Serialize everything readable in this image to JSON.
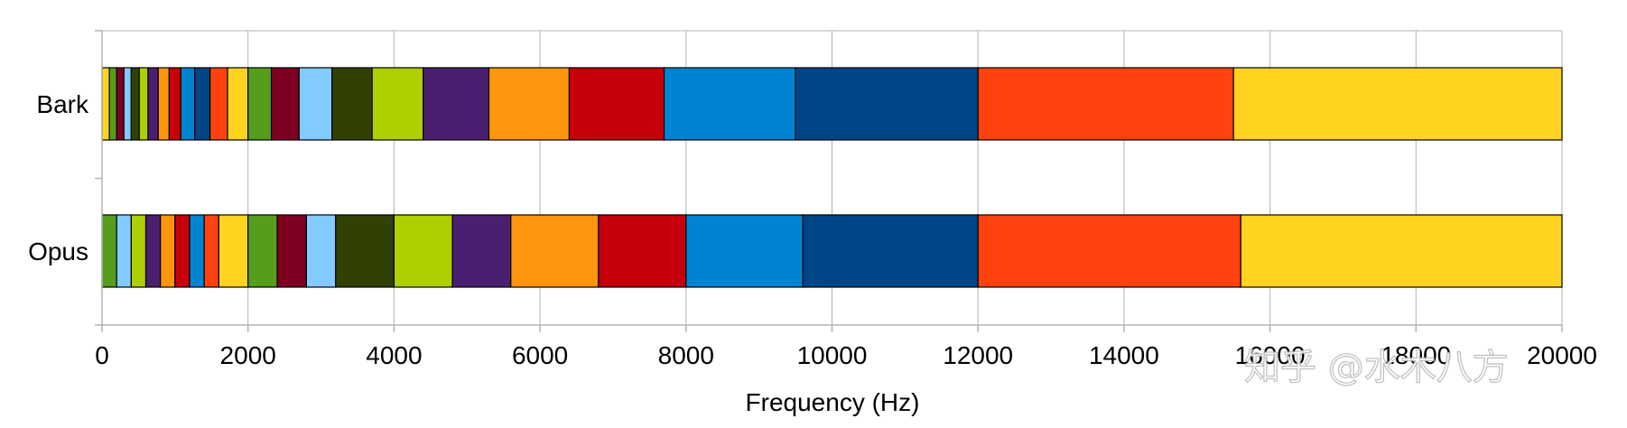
{
  "chart_data": {
    "type": "bar",
    "orientation": "horizontal-stacked-bands",
    "xlabel": "Frequency (Hz)",
    "xlim": [
      0,
      20000
    ],
    "xticks": [
      0,
      2000,
      4000,
      6000,
      8000,
      10000,
      12000,
      14000,
      16000,
      18000,
      20000
    ],
    "grid": true,
    "categories": [
      "Bark",
      "Opus"
    ],
    "palette": [
      "#ffd320",
      "#579d1c",
      "#7e0021",
      "#83caff",
      "#314004",
      "#aecf00",
      "#4b1f6f",
      "#ff950e",
      "#c5000b",
      "#0084d1",
      "#004586",
      "#ff420e"
    ],
    "series": [
      {
        "category": "Bark",
        "band_edges": [
          0,
          100,
          200,
          300,
          400,
          510,
          630,
          770,
          920,
          1080,
          1270,
          1480,
          1720,
          2000,
          2320,
          2700,
          3150,
          3700,
          4400,
          5300,
          6400,
          7700,
          9500,
          12000,
          15500,
          20000
        ],
        "colors": [
          "#ffd320",
          "#579d1c",
          "#7e0021",
          "#83caff",
          "#314004",
          "#aecf00",
          "#4b1f6f",
          "#ff950e",
          "#c5000b",
          "#0084d1",
          "#004586",
          "#ff420e",
          "#ffd320",
          "#579d1c",
          "#7e0021",
          "#83caff",
          "#314004",
          "#aecf00",
          "#4b1f6f",
          "#ff950e",
          "#c5000b",
          "#0084d1",
          "#004586",
          "#ff420e",
          "#ffd320"
        ]
      },
      {
        "category": "Opus",
        "band_edges": [
          0,
          200,
          400,
          600,
          800,
          1000,
          1200,
          1400,
          1600,
          2000,
          2400,
          2800,
          3200,
          4000,
          4800,
          5600,
          6800,
          8000,
          9600,
          12000,
          15600,
          20000
        ],
        "colors": [
          "#579d1c",
          "#83caff",
          "#aecf00",
          "#4b1f6f",
          "#ff950e",
          "#c5000b",
          "#0084d1",
          "#ff420e",
          "#ffd320",
          "#579d1c",
          "#7e0021",
          "#83caff",
          "#314004",
          "#aecf00",
          "#4b1f6f",
          "#ff950e",
          "#c5000b",
          "#0084d1",
          "#004586",
          "#ff420e",
          "#ffd320"
        ]
      }
    ]
  },
  "watermark": "知乎 @水木八方"
}
